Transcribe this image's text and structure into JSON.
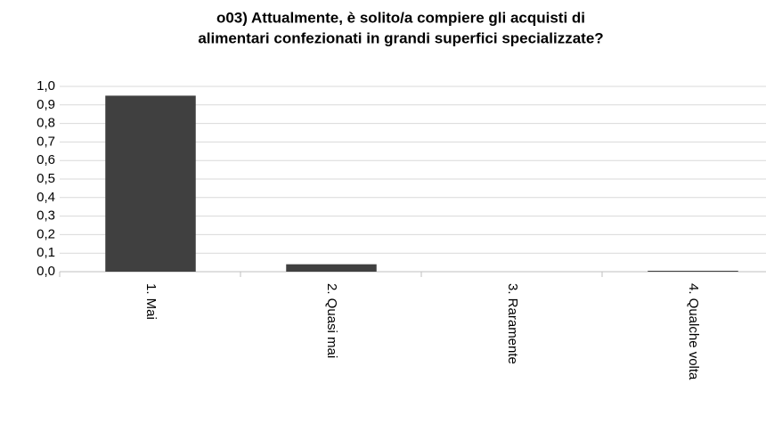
{
  "chart_data": {
    "type": "bar",
    "title": [
      "o03) Attualmente, è solito/a compiere gli acquisti di",
      "alimentari confezionati in grandi superfici specializzate?"
    ],
    "categories": [
      "1. Mai",
      "2. Quasi mai",
      "3. Raramente",
      "4. Qualche volta"
    ],
    "values": [
      0.95,
      0.04,
      0,
      0.005
    ],
    "color": "#404040",
    "ylim": [
      0,
      1
    ],
    "yticks": [
      {
        "value": 0,
        "label": "0,0"
      },
      {
        "value": 0.1,
        "label": "0,1"
      },
      {
        "value": 0.2,
        "label": "0,2"
      },
      {
        "value": 0.3,
        "label": "0,3"
      },
      {
        "value": 0.4,
        "label": "0,4"
      },
      {
        "value": 0.5,
        "label": "0,5"
      },
      {
        "value": 0.6,
        "label": "0,6"
      },
      {
        "value": 0.7,
        "label": "0,7"
      },
      {
        "value": 0.8,
        "label": "0,8"
      },
      {
        "value": 0.9,
        "label": "0,9"
      },
      {
        "value": 1,
        "label": "1,0"
      }
    ],
    "grid": true
  }
}
